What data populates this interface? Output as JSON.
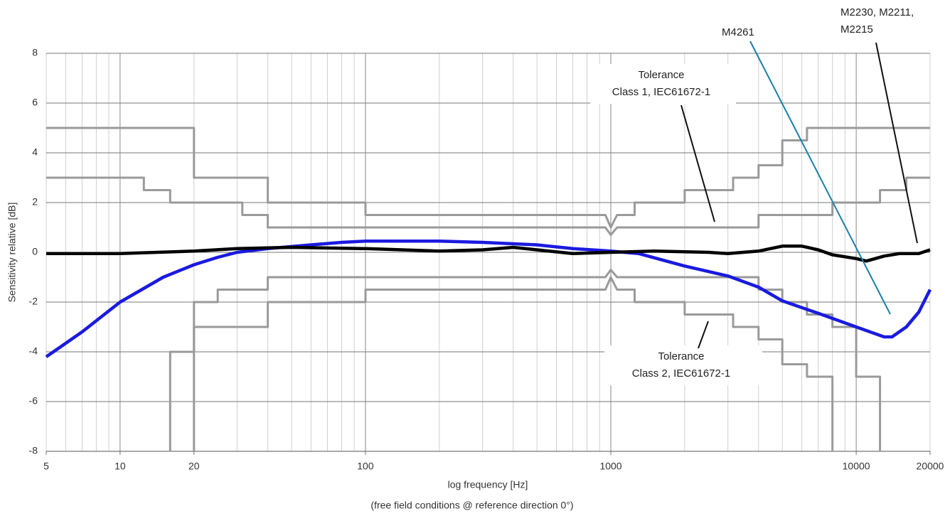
{
  "chart_data": {
    "type": "line",
    "x_label": "log frequency [Hz]",
    "subtitle": "(free field conditions @ reference direction 0°)",
    "y_label": "Sensitivity relative [dB]",
    "log_x": true,
    "grid": true,
    "xlim": [
      5,
      20000
    ],
    "ylim": [
      -8,
      8
    ],
    "xticks": [
      5,
      10,
      20,
      100,
      1000,
      10000,
      20000
    ],
    "yticks": [
      -8,
      -6,
      -4,
      -2,
      0,
      2,
      4,
      6,
      8
    ],
    "series": [
      {
        "color": "#9a9a9a",
        "x": [
          5,
          20,
          20,
          40,
          40,
          100,
          100,
          950,
          1000,
          1060,
          1250,
          1250,
          2000,
          2000,
          3150,
          3150,
          4000,
          4000,
          5000,
          5000,
          6300,
          6300,
          20000
        ],
        "values": [
          5,
          5,
          3,
          3,
          2,
          2,
          1.5,
          1.5,
          1,
          1.5,
          1.5,
          2,
          2,
          2.5,
          2.5,
          3,
          3,
          3.5,
          3.5,
          4.5,
          4.5,
          5,
          5
        ]
      },
      {
        "color": "#9a9a9a",
        "x": [
          5,
          12.5,
          12.5,
          16,
          16,
          31.5,
          31.5,
          40,
          40,
          950,
          1000,
          1060,
          4000,
          4000,
          8000,
          8000,
          12500,
          12500,
          16000,
          16000,
          20000
        ],
        "values": [
          3,
          3,
          2.5,
          2.5,
          2,
          2,
          1.5,
          1.5,
          1,
          1,
          0.7,
          1,
          1,
          1.5,
          1.5,
          2,
          2,
          2.5,
          2.5,
          3,
          3
        ]
      },
      {
        "color": "#9a9a9a",
        "x": [
          16,
          16,
          20,
          20,
          25,
          25,
          40,
          40,
          950,
          1000,
          1060,
          4000,
          4000,
          5000,
          5000,
          6300,
          6300,
          8000,
          8000,
          10000,
          10000,
          12500,
          12500
        ],
        "values": [
          -8,
          -4,
          -4,
          -2,
          -2,
          -1.5,
          -1.5,
          -1,
          -1,
          -0.7,
          -1,
          -1,
          -1.5,
          -1.5,
          -2,
          -2,
          -2.5,
          -2.5,
          -3,
          -3,
          -5,
          -5,
          -8
        ]
      },
      {
        "color": "#9a9a9a",
        "x": [
          20,
          20,
          40,
          40,
          100,
          100,
          950,
          1000,
          1060,
          1250,
          1250,
          2000,
          2000,
          3150,
          3150,
          4000,
          4000,
          5000,
          5000,
          6300,
          6300,
          8000,
          8000
        ],
        "values": [
          -8,
          -3,
          -3,
          -2,
          -2,
          -1.5,
          -1.5,
          -1,
          -1.5,
          -1.5,
          -2,
          -2,
          -2.5,
          -2.5,
          -3,
          -3,
          -3.5,
          -3.5,
          -4.5,
          -4.5,
          -5,
          -5,
          -8
        ]
      },
      {
        "color": "#1a1adf",
        "x": [
          5,
          7,
          10,
          15,
          20,
          25,
          30,
          40,
          60,
          80,
          100,
          200,
          300,
          500,
          700,
          1000,
          1300,
          2000,
          3000,
          4000,
          5000,
          7000,
          10000,
          13000,
          14000,
          16000,
          18000,
          20000
        ],
        "values": [
          -4.2,
          -3.2,
          -2,
          -1,
          -0.5,
          -0.2,
          0,
          0.15,
          0.3,
          0.4,
          0.45,
          0.45,
          0.4,
          0.3,
          0.15,
          0.05,
          -0.05,
          -0.55,
          -0.95,
          -1.4,
          -1.95,
          -2.45,
          -3,
          -3.4,
          -3.4,
          -3,
          -2.4,
          -1.5
        ]
      },
      {
        "color": "#000000",
        "x": [
          5,
          10,
          20,
          30,
          50,
          100,
          200,
          300,
          400,
          500,
          700,
          1000,
          1500,
          2500,
          3000,
          4000,
          5000,
          6000,
          7000,
          8000,
          10000,
          11000,
          13000,
          15000,
          18000,
          20000
        ],
        "values": [
          -0.05,
          -0.05,
          0.05,
          0.15,
          0.2,
          0.15,
          0.05,
          0.1,
          0.2,
          0.1,
          -0.05,
          0,
          0.05,
          0,
          -0.05,
          0.05,
          0.25,
          0.25,
          0.1,
          -0.1,
          -0.25,
          -0.35,
          -0.15,
          -0.05,
          -0.05,
          0.1
        ]
      }
    ],
    "annotations": [
      {
        "lines": [
          "M4261"
        ]
      },
      {
        "lines": [
          "M2230, M2211,",
          "M2215"
        ]
      },
      {
        "lines": [
          "Tolerance",
          "Class 1, IEC61672-1"
        ]
      },
      {
        "lines": [
          "Tolerance",
          "Class 2, IEC61672-1"
        ]
      }
    ]
  }
}
